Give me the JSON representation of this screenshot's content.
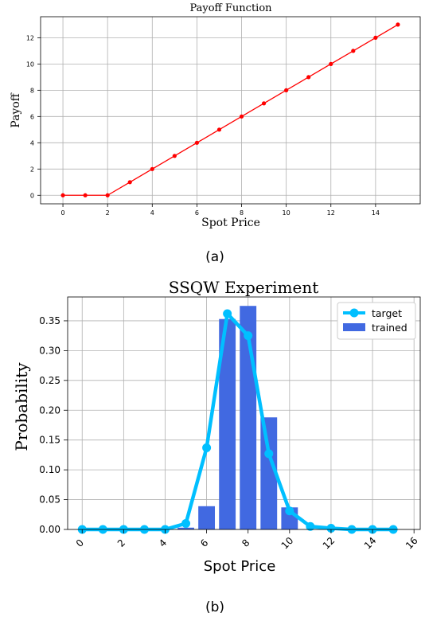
{
  "chart_data": [
    {
      "type": "line",
      "title": "Payoff Function",
      "xlabel": "Spot Price",
      "ylabel": "Payoff",
      "xlim": [
        -1,
        16
      ],
      "ylim": [
        -0.65,
        13.6
      ],
      "xticks": [
        0,
        2,
        4,
        6,
        8,
        10,
        12,
        14
      ],
      "yticks": [
        0,
        2,
        4,
        6,
        8,
        10,
        12
      ],
      "grid": true,
      "series": [
        {
          "color": "#ff0000",
          "x": [
            0,
            1,
            2,
            3,
            4,
            5,
            6,
            7,
            8,
            9,
            10,
            11,
            12,
            13,
            14,
            15
          ],
          "y": [
            0,
            0,
            0,
            1,
            2,
            3,
            4,
            5,
            6,
            7,
            8,
            9,
            10,
            11,
            12,
            13
          ]
        }
      ],
      "caption": "(a)"
    },
    {
      "type": "bar+line",
      "title": "SSQW Experiment",
      "xlabel": "Spot Price",
      "ylabel": "Probability",
      "xlim": [
        -0.7,
        16.3
      ],
      "ylim": [
        0,
        0.39
      ],
      "xticks": [
        0,
        2,
        4,
        6,
        8,
        10,
        12,
        14,
        16
      ],
      "yticks": [
        0.0,
        0.05,
        0.1,
        0.15,
        0.2,
        0.25,
        0.3,
        0.35
      ],
      "ytick_labels": [
        "0.00",
        "0.05",
        "0.10",
        "0.15",
        "0.20",
        "0.25",
        "0.30",
        "0.35"
      ],
      "grid": true,
      "legend_position": "top-right",
      "series": [
        {
          "name": "target",
          "type": "line",
          "color": "#00bfff",
          "x": [
            0,
            1,
            2,
            3,
            4,
            5,
            6,
            7,
            8,
            9,
            10,
            11,
            12,
            13,
            14,
            15
          ],
          "y": [
            0.0,
            0.0,
            0.0,
            0.0,
            0.0,
            0.01,
            0.137,
            0.362,
            0.325,
            0.127,
            0.031,
            0.005,
            0.002,
            0.0,
            0.0,
            0.0
          ]
        },
        {
          "name": "trained",
          "type": "bar",
          "color": "#4169e1",
          "x": [
            0,
            1,
            2,
            3,
            4,
            5,
            6,
            7,
            8,
            9,
            10,
            11,
            12,
            13,
            14,
            15
          ],
          "y": [
            0.0,
            0.0,
            0.0,
            0.0,
            0.0,
            0.003,
            0.039,
            0.353,
            0.375,
            0.188,
            0.037,
            0.0,
            0.0,
            0.0,
            0.0,
            0.0
          ]
        }
      ],
      "caption": "(b)"
    }
  ]
}
